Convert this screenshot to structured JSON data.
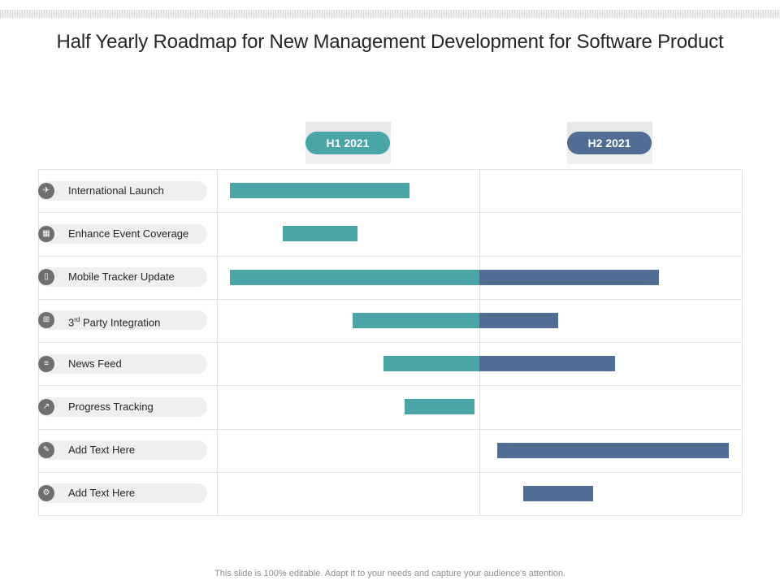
{
  "title": "Half Yearly Roadmap for New Management Development for Software Product",
  "colors": {
    "h1": "#4aa6a6",
    "h2": "#526d94"
  },
  "footer": "This slide is 100% editable. Adapt it to your needs and capture your audience's attention.",
  "chart_data": {
    "type": "gantt",
    "periods": [
      "H1 2021",
      "H2 2021"
    ],
    "period_boundaries_months": [
      0,
      6,
      12
    ],
    "tasks": [
      {
        "icon": "rocket-icon",
        "label": "International Launch",
        "start": 0.3,
        "end": 4.4
      },
      {
        "icon": "calendar-icon",
        "label": "Enhance Event Coverage",
        "start": 1.5,
        "end": 3.2
      },
      {
        "icon": "phone-icon",
        "label": "Mobile Tracker Update",
        "start": 0.3,
        "end": 10.1
      },
      {
        "icon": "integration-icon",
        "label": "3rd Party Integration",
        "label_main": "3",
        "label_sup": "rd",
        "label_rest": " Party Integration",
        "start": 3.1,
        "end": 7.8
      },
      {
        "icon": "newspaper-icon",
        "label": "News Feed",
        "start": 3.8,
        "end": 9.1
      },
      {
        "icon": "chart-icon",
        "label": "Progress Tracking",
        "start": 4.3,
        "end": 5.9
      },
      {
        "icon": "edit-icon",
        "label": "Add Text Here",
        "start": 6.4,
        "end": 11.7
      },
      {
        "icon": "gear-icon",
        "label": "Add Text Here",
        "start": 7.0,
        "end": 8.6
      }
    ]
  }
}
